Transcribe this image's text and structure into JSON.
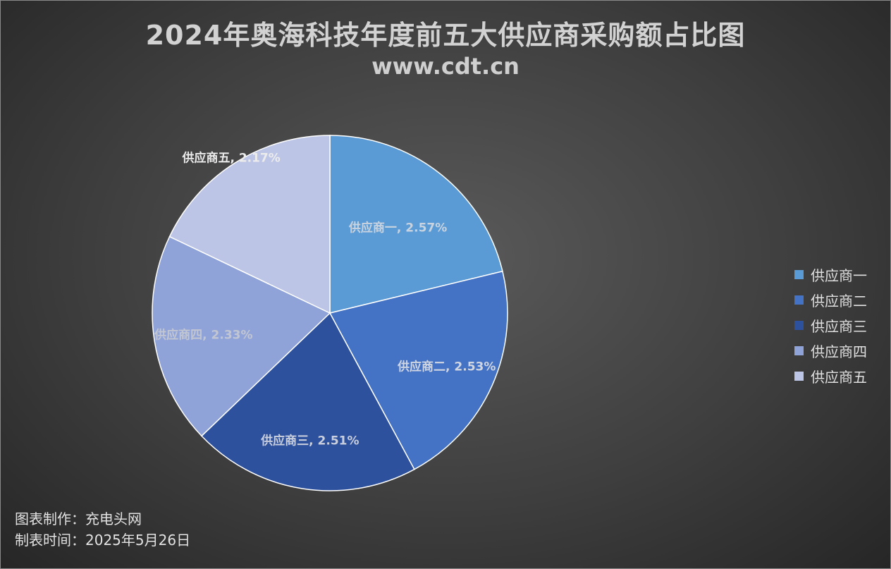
{
  "chart_data": {
    "type": "pie",
    "title": "2024年奥海科技年度前五大供应商采购额占比图",
    "subtitle": "www.cdt.cn",
    "slices": [
      {
        "name": "供应商一",
        "value": 2.57,
        "label": "供应商一, 2.57%",
        "color": "#5b9bd5",
        "label_color": "#c8d3df"
      },
      {
        "name": "供应商二",
        "value": 2.53,
        "label": "供应商二, 2.53%",
        "color": "#4472c4",
        "label_color": "#d0d6e2"
      },
      {
        "name": "供应商三",
        "value": 2.51,
        "label": "供应商三, 2.51%",
        "color": "#2e519e",
        "label_color": "#c9cfdc"
      },
      {
        "name": "供应商四",
        "value": 2.33,
        "label": "供应商四, 2.33%",
        "color": "#8fa3d8",
        "label_color": "#c2c6d2"
      },
      {
        "name": "供应商五",
        "value": 2.17,
        "label": "供应商五, 2.17%",
        "color": "#bcc5e6",
        "label_color": "#ececec"
      }
    ],
    "legend_position": "right"
  },
  "footer": {
    "maker": "图表制作：充电头网",
    "date": "制表时间：2025年5月26日"
  }
}
